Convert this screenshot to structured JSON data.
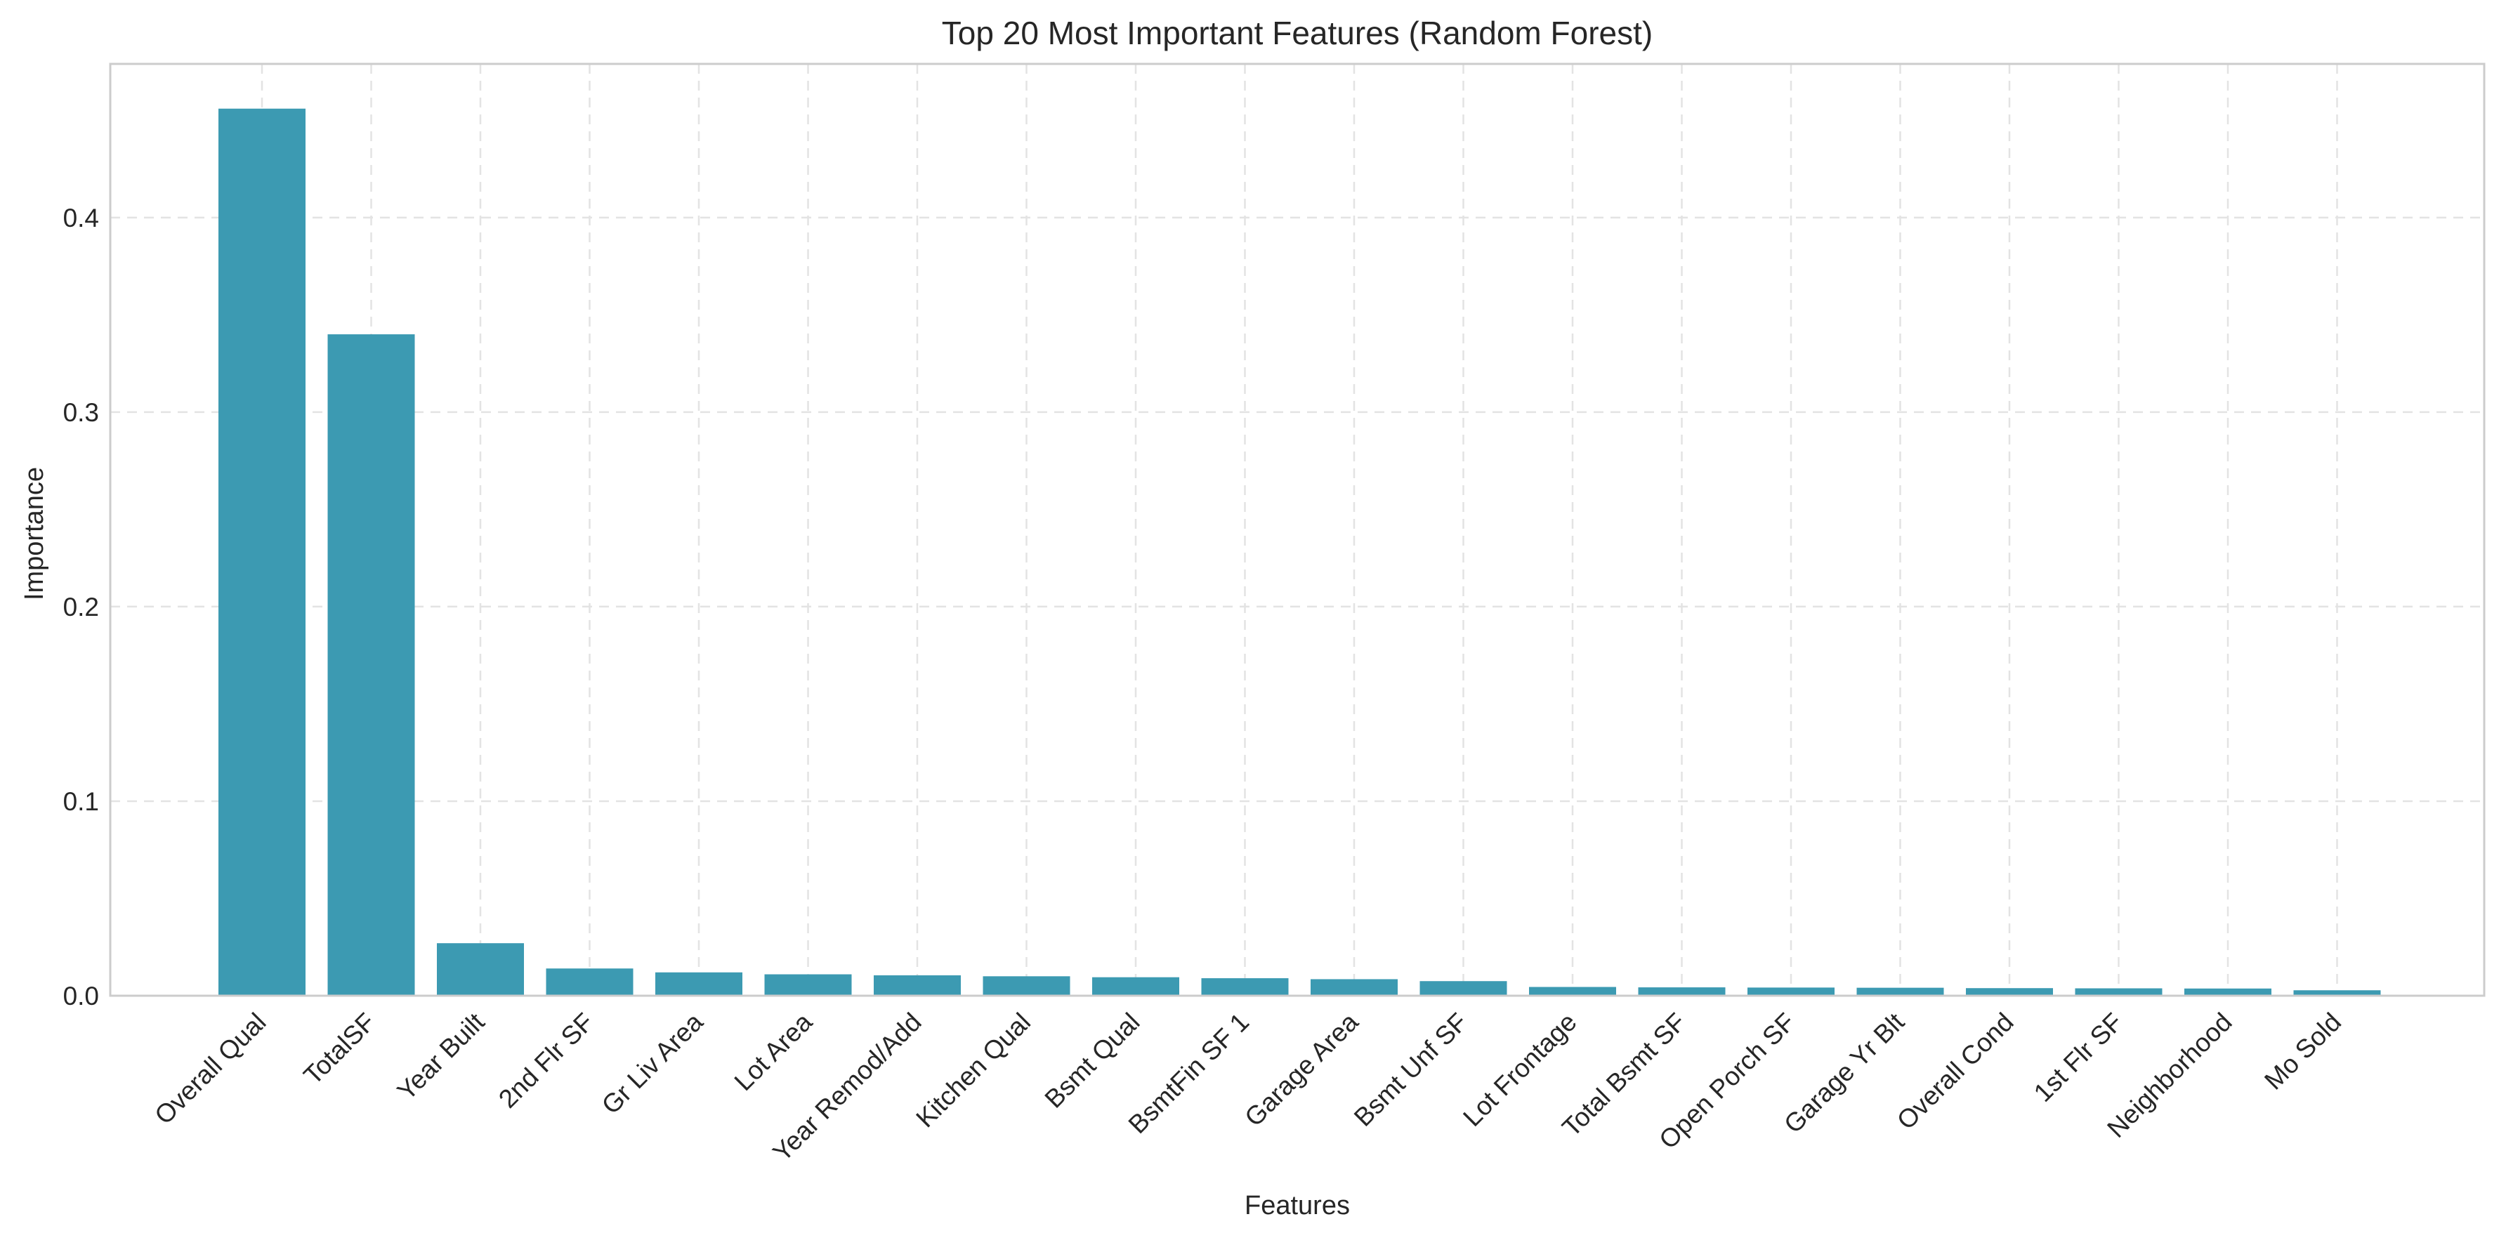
{
  "chart_data": {
    "type": "bar",
    "title": "Top 20 Most Important Features (Random Forest)",
    "xlabel": "Features",
    "ylabel": "Importance",
    "categories": [
      "Overall Qual",
      "TotalSF",
      "Year Built",
      "2nd Flr SF",
      "Gr Liv Area",
      "Lot Area",
      "Year Remod/Add",
      "Kitchen Qual",
      "Bsmt Qual",
      "BsmtFin SF 1",
      "Garage Area",
      "Bsmt Unf SF",
      "Lot Frontage",
      "Total Bsmt SF",
      "Open Porch SF",
      "Garage Yr Blt",
      "Overall Cond",
      "1st Flr SF",
      "Neighborhood",
      "Mo Sold"
    ],
    "values": [
      0.456,
      0.34,
      0.027,
      0.014,
      0.012,
      0.011,
      0.0105,
      0.01,
      0.0095,
      0.009,
      0.0085,
      0.0075,
      0.0045,
      0.0043,
      0.0042,
      0.0041,
      0.0039,
      0.0038,
      0.0037,
      0.0028
    ],
    "ylim": [
      0,
      0.479
    ],
    "yticks": [
      0.0,
      0.1,
      0.2,
      0.3,
      0.4
    ],
    "ytick_labels": [
      "0.0",
      "0.1",
      "0.2",
      "0.3",
      "0.4"
    ],
    "grid": true,
    "bar_color": "#3c9ab2"
  }
}
